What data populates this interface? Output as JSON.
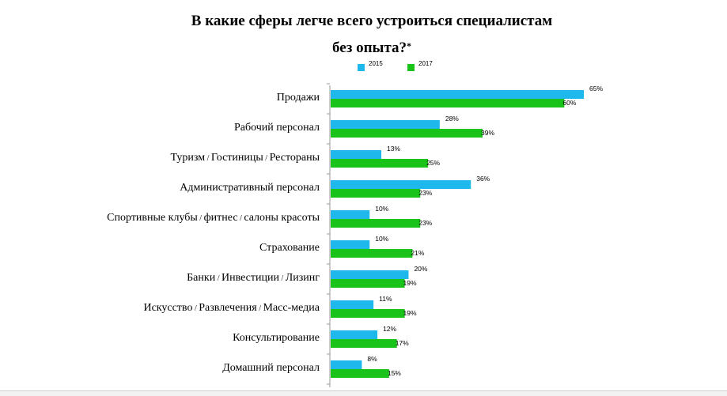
{
  "title_line1": "В какие сферы легче всего устроиться специалистам",
  "title_line2": "без опыта?",
  "title_mark": "*",
  "colors": {
    "2015": "#1fb8ec",
    "2017": "#1ac31a",
    "axis": "#9a9a9a"
  },
  "chart_data": {
    "type": "bar",
    "orientation": "horizontal",
    "title": "В какие сферы легче всего устроиться специалистам без опыта?*",
    "categories": [
      "Продажи",
      "Рабочий персонал",
      "Туризм / Гостиницы / Рестораны",
      "Административный персонал",
      "Спортивные клубы / фитнес / салоны красоты",
      "Страхование",
      "Банки / Инвестиции / Лизинг",
      "Искусство / Развлечения / Масс-медиа",
      "Консультирование",
      "Домашний персонал"
    ],
    "series": [
      {
        "name": "2015",
        "values": [
          65,
          28,
          13,
          36,
          10,
          10,
          20,
          11,
          12,
          8
        ],
        "labels": [
          "65%",
          "28%",
          "13%",
          "36%",
          "10%",
          "10%",
          "20%",
          "11%",
          "12%",
          "8%"
        ]
      },
      {
        "name": "2017",
        "values": [
          60,
          39,
          25,
          23,
          23,
          21,
          19,
          19,
          17,
          15
        ],
        "labels": [
          "60%",
          "39%",
          "25%",
          "23%",
          "23%",
          "21%",
          "19%",
          "19%",
          "17%",
          "15%"
        ]
      }
    ],
    "xlim": [
      0,
      100
    ],
    "grid": false,
    "legend": "top"
  }
}
